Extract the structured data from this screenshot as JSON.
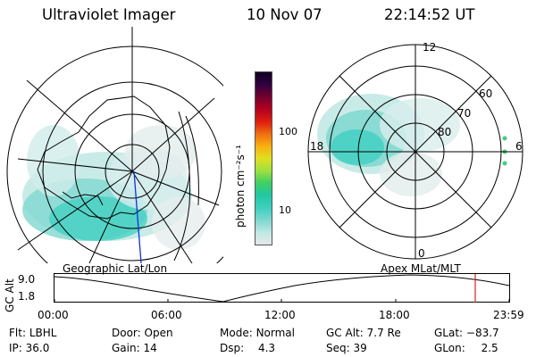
{
  "header": {
    "instrument": "Ultraviolet Imager",
    "date": "10 Nov 07",
    "time": "22:14:52 UT"
  },
  "colorbar": {
    "label": "photon cm⁻²s⁻¹",
    "ticks": [
      {
        "value": 100,
        "label": "100"
      },
      {
        "value": 10,
        "label": "10"
      }
    ],
    "log_scale": true,
    "colors": [
      "#e8e8e8",
      "#bfe8e4",
      "#7fd8d0",
      "#3fd0c0",
      "#20c8a0",
      "#40d060",
      "#a0e040",
      "#e0e020",
      "#f8b010",
      "#f07010",
      "#e02010",
      "#b00020",
      "#700030",
      "#300040",
      "#100020"
    ]
  },
  "left_map": {
    "label": "Geographic Lat/Lon"
  },
  "right_map": {
    "label": "Apex  MLat/MLT",
    "mlt_labels": [
      "12",
      "18",
      "6",
      "0"
    ],
    "lat_labels": [
      "60",
      "70",
      "80"
    ]
  },
  "altitude_plot": {
    "ylabel": "GC Alt",
    "yticks": [
      "9.0",
      "1.8"
    ],
    "xticks": [
      "00:00",
      "06:00",
      "12:00",
      "18:00",
      "23:59"
    ],
    "current_time_marker": "22:14:52",
    "marker_color": "#e02020"
  },
  "info": {
    "filter": {
      "label": "Flt:",
      "value": "LBHL"
    },
    "ip": {
      "label": "IP:",
      "value": "36.0"
    },
    "door": {
      "label": "Door:",
      "value": "Open"
    },
    "gain": {
      "label": "Gain:",
      "value": "14"
    },
    "mode": {
      "label": "Mode:",
      "value": "Normal"
    },
    "dsp": {
      "label": "Dsp:",
      "value": "4.3"
    },
    "gc_alt": {
      "label": "GC Alt:",
      "value": "7.7 Re"
    },
    "seq": {
      "label": "Seq:",
      "value": "39"
    },
    "glat": {
      "label": "GLat:",
      "value": "−83.7"
    },
    "glon": {
      "label": "GLon:",
      "value": "2.5"
    }
  }
}
